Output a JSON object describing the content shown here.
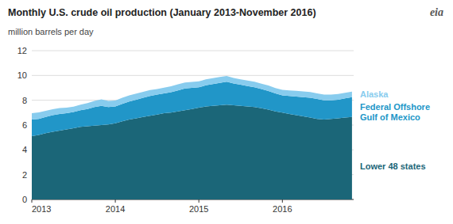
{
  "chart_data": {
    "type": "area",
    "stacked": true,
    "title": "Monthly U.S. crude oil production (January 2013-November 2016)",
    "subtitle": "million barrels per day",
    "annotations": [
      "eia"
    ],
    "grid": true,
    "x": [
      2013,
      2013.083333,
      2013.166667,
      2013.25,
      2013.333333,
      2013.416667,
      2013.5,
      2013.583333,
      2013.666667,
      2013.75,
      2013.833333,
      2013.916667,
      2014,
      2014.083333,
      2014.166667,
      2014.25,
      2014.333333,
      2014.416667,
      2014.5,
      2014.583333,
      2014.666667,
      2014.75,
      2014.833333,
      2014.916667,
      2015,
      2015.083333,
      2015.166667,
      2015.25,
      2015.333333,
      2015.416667,
      2015.5,
      2015.583333,
      2015.666667,
      2015.75,
      2015.833333,
      2015.916667,
      2016,
      2016.083333,
      2016.166667,
      2016.25,
      2016.333333,
      2016.416667,
      2016.5,
      2016.583333,
      2016.666667,
      2016.75,
      2016.833333
    ],
    "xlim": [
      2013,
      2016.853333
    ],
    "xticks": [
      2013,
      2014,
      2015,
      2016
    ],
    "ylim": [
      0,
      12
    ],
    "yticks": [
      0,
      2,
      4,
      6,
      8,
      10,
      12
    ],
    "series": [
      {
        "name": "Lower 48 states",
        "color": "#1b6678",
        "values": [
          5.1,
          5.2,
          5.35,
          5.45,
          5.55,
          5.65,
          5.75,
          5.85,
          5.9,
          5.95,
          6.0,
          6.05,
          6.15,
          6.3,
          6.45,
          6.55,
          6.65,
          6.75,
          6.85,
          6.95,
          7.0,
          7.1,
          7.2,
          7.3,
          7.4,
          7.5,
          7.55,
          7.6,
          7.65,
          7.6,
          7.55,
          7.5,
          7.45,
          7.35,
          7.25,
          7.1,
          7.0,
          6.9,
          6.8,
          6.7,
          6.6,
          6.5,
          6.45,
          6.5,
          6.55,
          6.6,
          6.65
        ]
      },
      {
        "name": "Federal Offshore\nGulf of Mexico",
        "color": "#2196c8",
        "values": [
          1.35,
          1.3,
          1.3,
          1.35,
          1.35,
          1.3,
          1.3,
          1.35,
          1.4,
          1.5,
          1.55,
          1.4,
          1.35,
          1.4,
          1.45,
          1.5,
          1.55,
          1.6,
          1.6,
          1.6,
          1.65,
          1.7,
          1.75,
          1.7,
          1.65,
          1.7,
          1.75,
          1.8,
          1.85,
          1.75,
          1.7,
          1.65,
          1.6,
          1.55,
          1.5,
          1.45,
          1.4,
          1.45,
          1.5,
          1.55,
          1.6,
          1.6,
          1.55,
          1.5,
          1.5,
          1.55,
          1.6
        ]
      },
      {
        "name": "Alaska",
        "color": "#88ccee",
        "values": [
          0.5,
          0.52,
          0.5,
          0.48,
          0.47,
          0.46,
          0.44,
          0.45,
          0.47,
          0.5,
          0.52,
          0.5,
          0.48,
          0.5,
          0.5,
          0.49,
          0.48,
          0.47,
          0.46,
          0.46,
          0.47,
          0.48,
          0.48,
          0.48,
          0.47,
          0.48,
          0.48,
          0.47,
          0.46,
          0.45,
          0.44,
          0.44,
          0.44,
          0.44,
          0.44,
          0.44,
          0.44,
          0.45,
          0.46,
          0.46,
          0.46,
          0.46,
          0.45,
          0.45,
          0.45,
          0.45,
          0.45
        ]
      }
    ]
  }
}
